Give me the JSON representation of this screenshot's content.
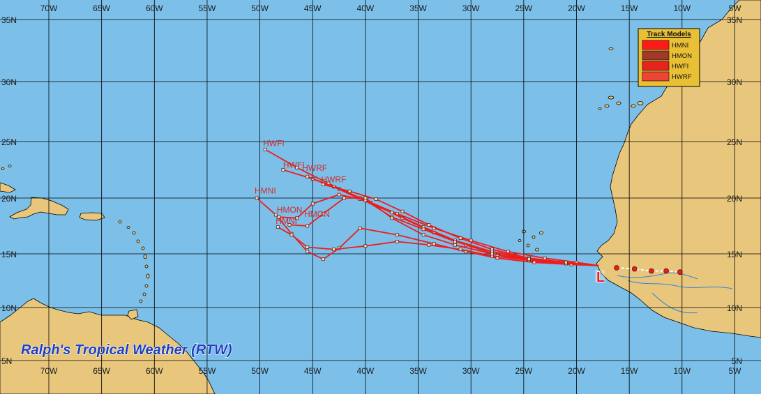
{
  "map": {
    "longitude_labels": [
      "70W",
      "65W",
      "60W",
      "55W",
      "50W",
      "45W",
      "40W",
      "35W",
      "30W",
      "25W",
      "20W",
      "15W",
      "10W",
      "5W"
    ],
    "latitude_labels": [
      "35N",
      "30N",
      "25N",
      "20N",
      "15N",
      "10N",
      "5N"
    ],
    "colors": {
      "ocean": "#7cc0ea",
      "land": "#e8c77d",
      "grid": "#000000",
      "track": "#ee1c1c",
      "legend_bg": "#e9bf35"
    }
  },
  "legend": {
    "title": "Track Models",
    "items": [
      {
        "label": "HMNI",
        "color": "#ff1a1a"
      },
      {
        "label": "HMON",
        "color": "#a03a28"
      },
      {
        "label": "HWFI",
        "color": "#e8231f"
      },
      {
        "label": "HWRF",
        "color": "#ee4433"
      }
    ]
  },
  "storm": {
    "marker": "L"
  },
  "track_labels": [
    {
      "text": "HWFI",
      "lon": -49.7,
      "lat": 24.6
    },
    {
      "text": "HWFI",
      "lon": -47.8,
      "lat": 22.7
    },
    {
      "text": "HWRF",
      "lon": -46.0,
      "lat": 22.4
    },
    {
      "text": "HWRF",
      "lon": -44.2,
      "lat": 21.4
    },
    {
      "text": "HMNI",
      "lon": -50.5,
      "lat": 20.4
    },
    {
      "text": "HMON",
      "lon": -48.4,
      "lat": 18.7
    },
    {
      "text": "HMON",
      "lon": -45.8,
      "lat": 18.3
    },
    {
      "text": "HMNI",
      "lon": -48.5,
      "lat": 17.7
    }
  ],
  "tracks": [
    {
      "name": "HWFI",
      "points": [
        [
          -17.9,
          13.9
        ],
        [
          -20,
          14.2
        ],
        [
          -23,
          14.6
        ],
        [
          -26.5,
          15.2
        ],
        [
          -30,
          16.2
        ],
        [
          -33.5,
          17.3
        ],
        [
          -37,
          18.6
        ],
        [
          -40.5,
          20.0
        ],
        [
          -43.5,
          21.3
        ],
        [
          -46.5,
          22.7
        ],
        [
          -49.5,
          24.3
        ]
      ]
    },
    {
      "name": "HWFI",
      "points": [
        [
          -17.9,
          13.9
        ],
        [
          -20.5,
          14.0
        ],
        [
          -24,
          14.3
        ],
        [
          -27.5,
          14.9
        ],
        [
          -30.5,
          15.8
        ],
        [
          -33.5,
          16.9
        ],
        [
          -36.5,
          18.2
        ],
        [
          -39.5,
          19.6
        ],
        [
          -42.5,
          20.8
        ],
        [
          -45,
          21.7
        ],
        [
          -47.8,
          22.5
        ]
      ]
    },
    {
      "name": "HWRF",
      "points": [
        [
          -17.9,
          13.9
        ],
        [
          -21,
          14.1
        ],
        [
          -24.5,
          14.5
        ],
        [
          -28,
          15.2
        ],
        [
          -31.5,
          16.2
        ],
        [
          -34.5,
          17.4
        ],
        [
          -37.5,
          18.7
        ],
        [
          -40.5,
          19.9
        ],
        [
          -43,
          21.0
        ],
        [
          -45.5,
          21.9
        ]
      ]
    },
    {
      "name": "HWRF",
      "points": [
        [
          -17.9,
          13.9
        ],
        [
          -21,
          14.2
        ],
        [
          -24.5,
          14.6
        ],
        [
          -28,
          15.4
        ],
        [
          -31,
          16.4
        ],
        [
          -34,
          17.6
        ],
        [
          -36.5,
          18.8
        ],
        [
          -39,
          19.9
        ],
        [
          -41.5,
          20.6
        ],
        [
          -44,
          21.2
        ]
      ]
    },
    {
      "name": "HMNI",
      "points": [
        [
          -17.9,
          13.9
        ],
        [
          -20.5,
          14.0
        ],
        [
          -24,
          14.2
        ],
        [
          -27.5,
          14.6
        ],
        [
          -30.5,
          15.2
        ],
        [
          -33.5,
          15.9
        ],
        [
          -37,
          16.7
        ],
        [
          -40.5,
          17.3
        ],
        [
          -42.5,
          15.5
        ],
        [
          -44,
          14.5
        ],
        [
          -45.5,
          15.2
        ],
        [
          -47,
          16.8
        ],
        [
          -48.5,
          18.5
        ],
        [
          -50.3,
          20.0
        ]
      ]
    },
    {
      "name": "HMON",
      "points": [
        [
          -17.9,
          13.9
        ],
        [
          -21,
          14.2
        ],
        [
          -24.5,
          14.6
        ],
        [
          -28,
          15.2
        ],
        [
          -31.5,
          16.1
        ],
        [
          -34.5,
          17.2
        ],
        [
          -37.5,
          18.3
        ],
        [
          -40,
          19.8
        ],
        [
          -42.5,
          20.3
        ],
        [
          -45,
          19.5
        ],
        [
          -46.5,
          18.2
        ],
        [
          -48.2,
          18.3
        ]
      ]
    },
    {
      "name": "HMON",
      "points": [
        [
          -17.9,
          13.9
        ],
        [
          -21,
          14.1
        ],
        [
          -24.5,
          14.4
        ],
        [
          -28,
          14.8
        ],
        [
          -31,
          15.4
        ],
        [
          -34,
          15.8
        ],
        [
          -37,
          16.1
        ],
        [
          -40,
          15.7
        ],
        [
          -43,
          15.4
        ],
        [
          -45.5,
          15.6
        ],
        [
          -47,
          16.7
        ],
        [
          -48.3,
          17.4
        ]
      ]
    },
    {
      "name": "HMNI",
      "points": [
        [
          -17.9,
          13.9
        ],
        [
          -21,
          14.2
        ],
        [
          -24.5,
          14.5
        ],
        [
          -28,
          15.0
        ],
        [
          -31.5,
          15.8
        ],
        [
          -34.5,
          16.7
        ],
        [
          -37.5,
          18.2
        ],
        [
          -40,
          20.0
        ],
        [
          -42,
          20.0
        ],
        [
          -44,
          18.6
        ],
        [
          -45.5,
          17.5
        ],
        [
          -47.2,
          17.6
        ]
      ]
    }
  ],
  "forecast_points": [
    {
      "lon": -16.2,
      "lat": 13.7
    },
    {
      "lon": -14.5,
      "lat": 13.6
    },
    {
      "lon": -12.9,
      "lat": 13.4
    },
    {
      "lon": -11.5,
      "lat": 13.4
    },
    {
      "lon": -10.2,
      "lat": 13.3
    }
  ],
  "branding": {
    "text": "Ralph's Tropical Weather (RTW)"
  }
}
